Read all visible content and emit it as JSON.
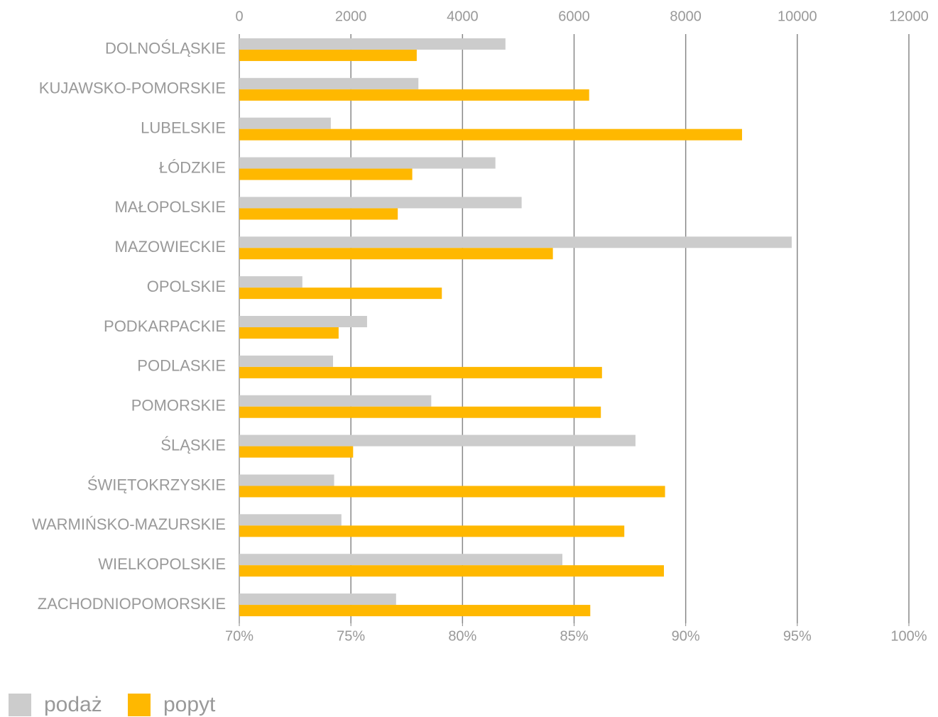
{
  "chart_data": {
    "type": "hbar",
    "categories": [
      "DOLNOŚLĄSKIE",
      "KUJAWSKO-POMORSKIE",
      "LUBELSKIE",
      "ŁÓDZKIE",
      "MAŁOPOLSKIE",
      "MAZOWIECKIE",
      "OPOLSKIE",
      "PODKARPACKIE",
      "PODLASKIE",
      "POMORSKIE",
      "ŚLĄSKIE",
      "ŚWIĘTOKRZYSKIE",
      "WARMIŃSKO-MAZURSKIE",
      "WIELKOPOLSKIE",
      "ZACHODNIOPOMORSKIE"
    ],
    "series": [
      {
        "name": "podaż",
        "color": "#cccccc",
        "values": [
          4770,
          3210,
          1640,
          4590,
          5060,
          9900,
          1130,
          2290,
          1680,
          3440,
          7100,
          1700,
          1830,
          5790,
          2810
        ]
      },
      {
        "name": "popyt",
        "color": "#ffb800",
        "values": [
          3180,
          6270,
          9010,
          3100,
          2840,
          5620,
          3630,
          1780,
          6500,
          6480,
          2040,
          7630,
          6900,
          7610,
          6290
        ]
      }
    ],
    "xlim": [
      0,
      12000
    ],
    "xticks": [
      0,
      2000,
      4000,
      6000,
      8000,
      10000,
      12000
    ],
    "x2lim": [
      70,
      100
    ],
    "x2ticks": [
      {
        "value": 70,
        "label": "70%"
      },
      {
        "value": 75,
        "label": "75%"
      },
      {
        "value": 80,
        "label": "80%"
      },
      {
        "value": 85,
        "label": "85%"
      },
      {
        "value": 90,
        "label": "90%"
      },
      {
        "value": 95,
        "label": "95%"
      },
      {
        "value": 100,
        "label": "100%"
      }
    ],
    "grid": true,
    "legend": "bottom-left"
  }
}
